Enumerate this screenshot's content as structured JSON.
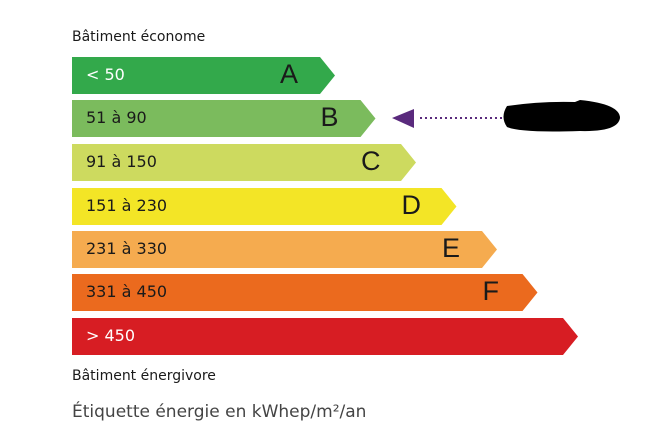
{
  "top_label": "Bâtiment économe",
  "bottom_label": "Bâtiment énergivore",
  "caption": "Étiquette énergie en kWhep/m²/an",
  "classes": [
    {
      "letter": "A",
      "range": "< 50",
      "color": "#33a94b",
      "text_color": "#ffffff"
    },
    {
      "letter": "B",
      "range": "51 à 90",
      "color": "#7bbb5d",
      "text_color": "#1a1a1a"
    },
    {
      "letter": "C",
      "range": "91 à 150",
      "color": "#cdda5f",
      "text_color": "#1a1a1a"
    },
    {
      "letter": "D",
      "range": "151 à 230",
      "color": "#f3e526",
      "text_color": "#1a1a1a"
    },
    {
      "letter": "E",
      "range": "231 à 330",
      "color": "#f5ab4f",
      "text_color": "#1a1a1a"
    },
    {
      "letter": "F",
      "range": "331 à 450",
      "color": "#eb6a1e",
      "text_color": "#1a1a1a"
    },
    {
      "letter": "",
      "range": "> 450",
      "color": "#d71d23",
      "text_color": "#ffffff"
    }
  ],
  "indicator": {
    "class": "B",
    "color": "#5a2a7d",
    "value_redacted": true
  }
}
